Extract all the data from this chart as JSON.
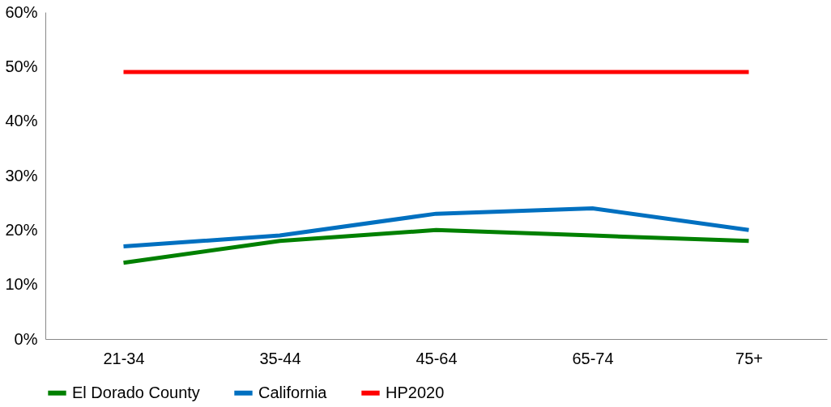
{
  "chart_data": {
    "type": "line",
    "categories": [
      "21-34",
      "35-44",
      "45-64",
      "65-74",
      "75+"
    ],
    "series": [
      {
        "name": "El Dorado County",
        "color": "#008000",
        "values": [
          14,
          18,
          20,
          19,
          18
        ]
      },
      {
        "name": "California",
        "color": "#0070c0",
        "values": [
          17,
          19,
          23,
          24,
          20
        ]
      },
      {
        "name": "HP2020",
        "color": "#ff0000",
        "values": [
          49,
          49,
          49,
          49,
          49
        ]
      }
    ],
    "ylim": [
      0,
      60
    ],
    "yticks": [
      {
        "value": 0,
        "label": "0%"
      },
      {
        "value": 10,
        "label": "10%"
      },
      {
        "value": 20,
        "label": "20%"
      },
      {
        "value": 30,
        "label": "30%"
      },
      {
        "value": 40,
        "label": "40%"
      },
      {
        "value": 50,
        "label": "50%"
      },
      {
        "value": 60,
        "label": "60%"
      }
    ],
    "grid": false,
    "legend": "bottom",
    "marker": "none",
    "line_style": "solid"
  }
}
